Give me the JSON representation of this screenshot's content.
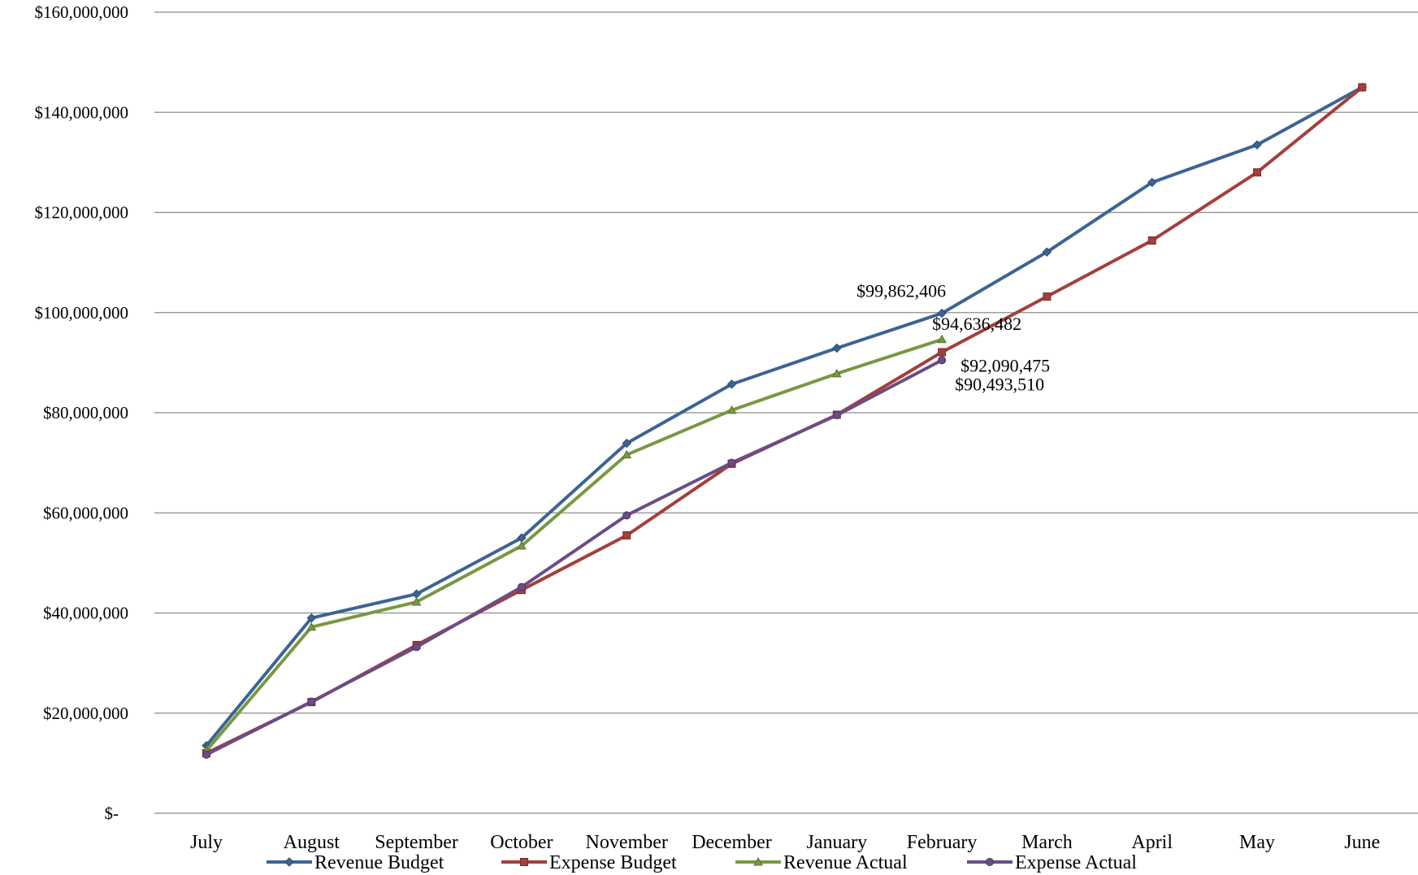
{
  "chart_data": {
    "type": "line",
    "title": "",
    "xlabel": "",
    "ylabel": "",
    "categories": [
      "July",
      "August",
      "September",
      "October",
      "November",
      "December",
      "January",
      "February",
      "March",
      "April",
      "May",
      "June"
    ],
    "y_ticks": [
      {
        "value": 0,
        "label": "$-"
      },
      {
        "value": 20000000,
        "label": "$20,000,000"
      },
      {
        "value": 40000000,
        "label": "$40,000,000"
      },
      {
        "value": 60000000,
        "label": "$60,000,000"
      },
      {
        "value": 80000000,
        "label": "$80,000,000"
      },
      {
        "value": 100000000,
        "label": "$100,000,000"
      },
      {
        "value": 120000000,
        "label": "$120,000,000"
      },
      {
        "value": 140000000,
        "label": "$140,000,000"
      },
      {
        "value": 160000000,
        "label": "$160,000,000"
      }
    ],
    "ylim": [
      0,
      160000000
    ],
    "grid": true,
    "legend_position": "bottom",
    "series": [
      {
        "name": "Revenue Budget",
        "color": "#3C6493",
        "marker": "diamond",
        "values": [
          13500000,
          39000000,
          43800000,
          55000000,
          73900000,
          85700000,
          92900000,
          99862406,
          112100000,
          126000000,
          133500000,
          145000000
        ]
      },
      {
        "name": "Expense Budget",
        "color": "#A33F3C",
        "marker": "square",
        "values": [
          12000000,
          22200000,
          33600000,
          44600000,
          55500000,
          69800000,
          79600000,
          92090475,
          103200000,
          114400000,
          128000000,
          145000000
        ]
      },
      {
        "name": "Revenue Actual",
        "color": "#789842",
        "marker": "triangle",
        "values": [
          12500000,
          37200000,
          42200000,
          53400000,
          71600000,
          80500000,
          87800000,
          94636482,
          null,
          null,
          null,
          null
        ]
      },
      {
        "name": "Expense Actual",
        "color": "#6B4C87",
        "marker": "circle",
        "values": [
          11700000,
          22300000,
          33200000,
          45200000,
          59500000,
          70000000,
          79500000,
          90493510,
          null,
          null,
          null,
          null
        ]
      }
    ],
    "annotations": [
      {
        "series": "Revenue Budget",
        "category": "February",
        "text": "$99,862,406"
      },
      {
        "series": "Revenue Actual",
        "category": "February",
        "text": "$94,636,482"
      },
      {
        "series": "Expense Budget",
        "category": "February",
        "text": "$92,090,475"
      },
      {
        "series": "Expense Actual",
        "category": "February",
        "text": "$90,493,510"
      }
    ]
  }
}
